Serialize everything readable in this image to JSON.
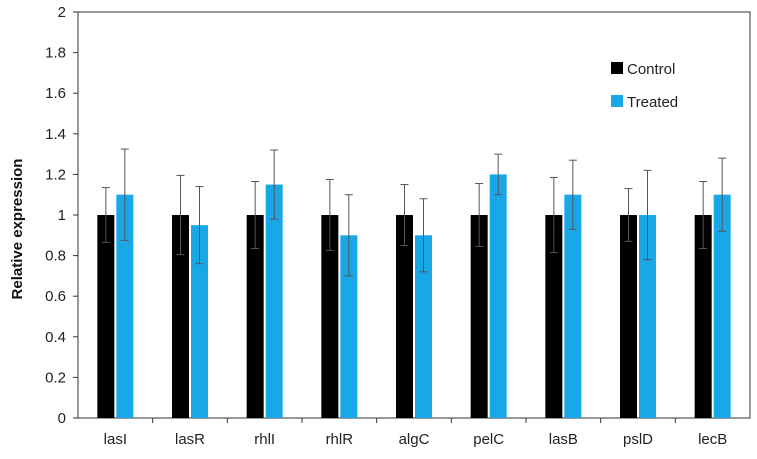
{
  "chart_data": {
    "type": "bar",
    "title": "",
    "xlabel": "",
    "ylabel": "Relative expression",
    "ylim": [
      0,
      2
    ],
    "yticks": [
      0,
      0.2,
      0.4,
      0.6,
      0.8,
      1,
      1.2,
      1.4,
      1.6,
      1.8,
      2
    ],
    "ytick_labels": [
      "0",
      "0.2",
      "0.4",
      "0.6",
      "0.8",
      "1",
      "1.2",
      "1.4",
      "1.6",
      "1.8",
      "2"
    ],
    "categories": [
      "lasI",
      "lasR",
      "rhlI",
      "rhlR",
      "algC",
      "pelC",
      "lasB",
      "pslD",
      "lecB"
    ],
    "series": [
      {
        "name": "Control",
        "color": "#000000",
        "values": [
          1,
          1,
          1,
          1,
          1,
          1,
          1,
          1,
          1
        ],
        "errors": [
          0.135,
          0.195,
          0.165,
          0.175,
          0.15,
          0.155,
          0.185,
          0.13,
          0.165
        ]
      },
      {
        "name": "Treated",
        "color": "#1aa7e8",
        "values": [
          1.1,
          0.95,
          1.15,
          0.9,
          0.9,
          1.2,
          1.1,
          1.0,
          1.1
        ],
        "errors": [
          0.225,
          0.19,
          0.17,
          0.2,
          0.18,
          0.1,
          0.17,
          0.22,
          0.18
        ]
      }
    ],
    "grid": false,
    "legend_position": "top-right"
  }
}
